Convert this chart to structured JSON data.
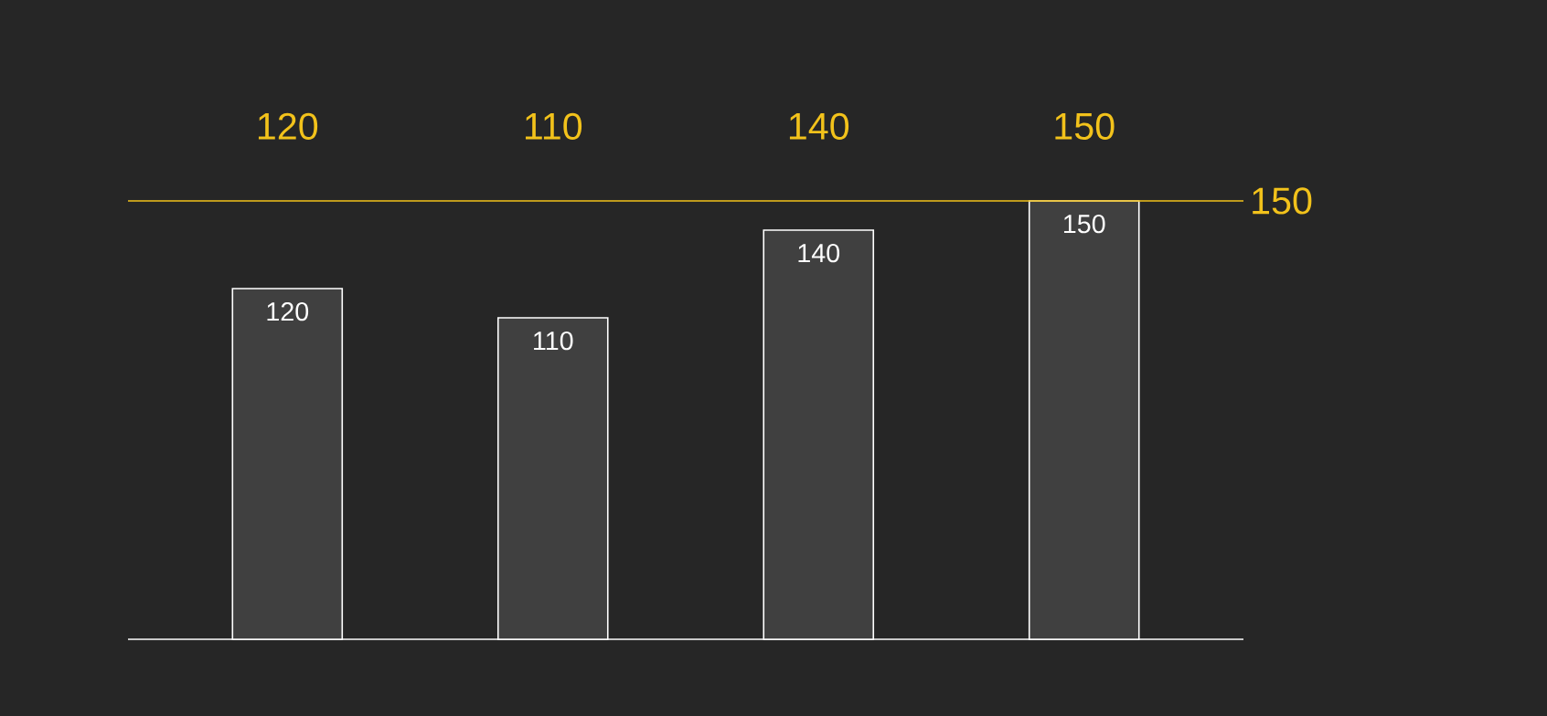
{
  "chart_data": {
    "type": "bar",
    "categories": [
      null,
      null,
      null,
      null
    ],
    "values": [
      120,
      110,
      140,
      150
    ],
    "color": "#404040",
    "data_labels": true,
    "ref_lines": [
      {
        "axis": "y",
        "value": 150,
        "label": "150",
        "color": "#f2c21b"
      }
    ],
    "annotations": [
      "120",
      "110",
      "140",
      "150"
    ]
  }
}
